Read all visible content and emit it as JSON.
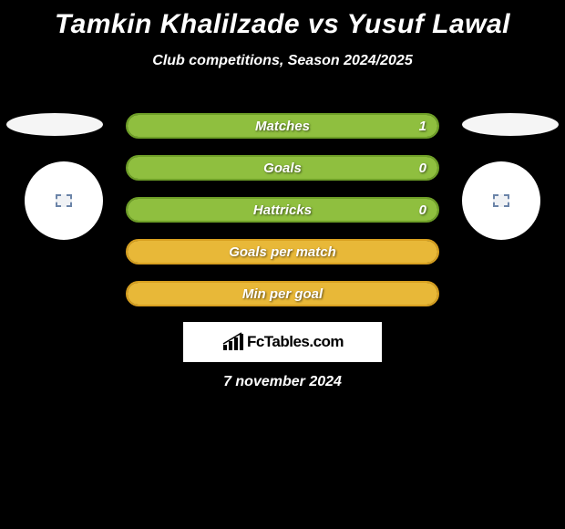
{
  "title": "Tamkin Khalilzade vs Yusuf Lawal",
  "subtitle": "Club competitions, Season 2024/2025",
  "date": "7 november 2024",
  "logo_text": "FcTables.com",
  "colors": {
    "background": "#000000",
    "green_border": "#6fa028",
    "green_fill": "#8fbf3f",
    "orange_border": "#d8a020",
    "orange_fill": "#e8b838",
    "white": "#ffffff"
  },
  "bars": [
    {
      "label": "Matches",
      "value_right": "1",
      "border": "#6fa028",
      "fill": "#8fbf3f",
      "fill_pct": 100,
      "show_value": true
    },
    {
      "label": "Goals",
      "value_right": "0",
      "border": "#6fa028",
      "fill": "#8fbf3f",
      "fill_pct": 100,
      "show_value": true
    },
    {
      "label": "Hattricks",
      "value_right": "0",
      "border": "#6fa028",
      "fill": "#8fbf3f",
      "fill_pct": 100,
      "show_value": true
    },
    {
      "label": "Goals per match",
      "value_right": "",
      "border": "#d8a020",
      "fill": "#e8b838",
      "fill_pct": 100,
      "show_value": false
    },
    {
      "label": "Min per goal",
      "value_right": "",
      "border": "#d8a020",
      "fill": "#e8b838",
      "fill_pct": 100,
      "show_value": false
    }
  ]
}
